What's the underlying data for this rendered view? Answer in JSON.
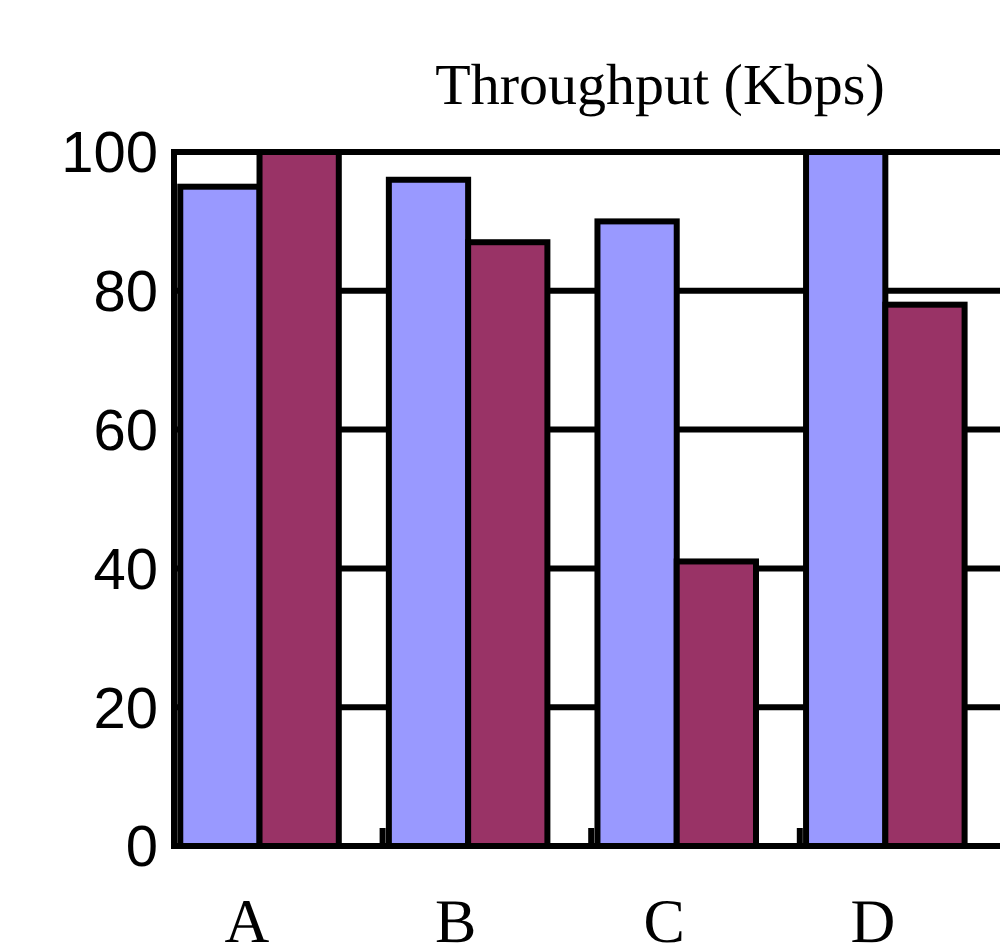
{
  "chart_data": {
    "type": "bar",
    "title": "Throughput (Kbps)",
    "categories": [
      "A",
      "B",
      "C",
      "D"
    ],
    "series": [
      {
        "color": "#9999ff",
        "values": [
          95,
          96,
          90,
          100
        ]
      },
      {
        "color": "#993366",
        "values": [
          100,
          87,
          41,
          78
        ]
      }
    ],
    "ylim": [
      0,
      100
    ],
    "yticks": [
      0,
      20,
      40,
      60,
      80,
      100
    ],
    "grid": "y"
  }
}
